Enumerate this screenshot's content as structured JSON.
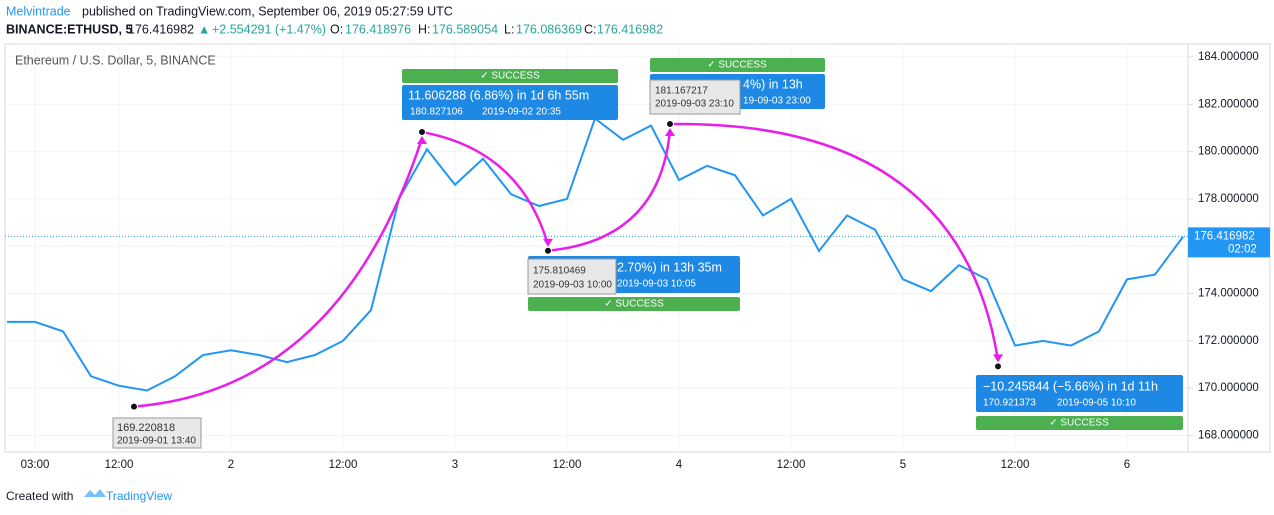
{
  "chart_data": {
    "type": "line",
    "header": {
      "author": "Melvintrade",
      "published": "published on TradingView.com, September 06, 2019 05:27:59 UTC",
      "symbol": "BINANCE:ETHUSD, 5",
      "last": "176.416982",
      "arrow": "▲",
      "change": "+2.554291 (+1.47%)",
      "o_label": "O:",
      "o": "176.418976",
      "h_label": "H:",
      "h": "176.589054",
      "l_label": "L:",
      "l": "176.086369",
      "c_label": "C:",
      "c": "176.416982"
    },
    "title": "Ethereum / U.S. Dollar, 5, BINANCE",
    "categories": [
      null,
      "03:00",
      null,
      null,
      "12:00",
      null,
      null,
      null,
      "2",
      null,
      null,
      null,
      "12:00",
      null,
      null,
      null,
      "3",
      null,
      null,
      null,
      "12:00",
      null,
      null,
      null,
      "4",
      null,
      null,
      null,
      "12:00",
      null,
      null,
      null,
      "5",
      null,
      null,
      null,
      "12:00",
      null,
      null,
      null,
      "6",
      null,
      null
    ],
    "values": [
      172.8,
      172.8,
      172.4,
      170.5,
      170.1,
      169.9,
      170.5,
      171.4,
      171.6,
      171.4,
      171.1,
      171.4,
      172.0,
      173.3,
      178.0,
      180.1,
      178.6,
      179.7,
      178.2,
      177.7,
      178.0,
      181.4,
      180.5,
      181.1,
      178.8,
      179.4,
      179.0,
      177.3,
      178.0,
      175.8,
      177.3,
      176.7,
      174.6,
      174.1,
      175.2,
      174.6,
      171.8,
      172.0,
      171.8,
      172.4,
      174.6,
      174.8,
      176.4
    ],
    "color": "#2196f3",
    "ylim": [
      167.3,
      184.55
    ],
    "yticks": [
      {
        "value": 168,
        "label": "168.000000"
      },
      {
        "value": 170,
        "label": "170.000000"
      },
      {
        "value": 172,
        "label": "172.000000"
      },
      {
        "value": 174,
        "label": "174.000000"
      },
      {
        "value": 176,
        "label": "176.000000"
      },
      {
        "value": 178,
        "label": "178.000000"
      },
      {
        "value": 180,
        "label": "180.000000"
      },
      {
        "value": 182,
        "label": "182.000000"
      },
      {
        "value": 184,
        "label": "184.000000"
      }
    ],
    "grid": true,
    "last_price": {
      "value": 176.416982,
      "label": "176.416982"
    },
    "countdown": "02:02",
    "annotations": [
      {
        "price": 169.220818,
        "time": "2019-09-01 13:40"
      },
      {
        "move": "11.606288 (6.86%) in 1d 6h 55m",
        "price": 180.827106,
        "time": "2019-09-02  20:35",
        "status": "✓ SUCCESS"
      },
      {
        "price": 175.810469,
        "time": "2019-09-03 10:00",
        "move": "2.70%) in 13h 35m",
        "time2": "2019-09-03  10:05",
        "status": "✓ SUCCESS"
      },
      {
        "price": 181.167217,
        "time": "2019-09-03 23:10",
        "move": "4%) in 13h",
        "time2": "19-09-03  23:00",
        "status": "✓ SUCCESS"
      },
      {
        "move": "−10.245844 (−5.66%) in 1d 11h",
        "price": 170.921373,
        "time": "2019-09-05  10:10",
        "status": "✓ SUCCESS"
      }
    ],
    "footer": {
      "created": "Created with",
      "brand": "TradingView"
    }
  }
}
